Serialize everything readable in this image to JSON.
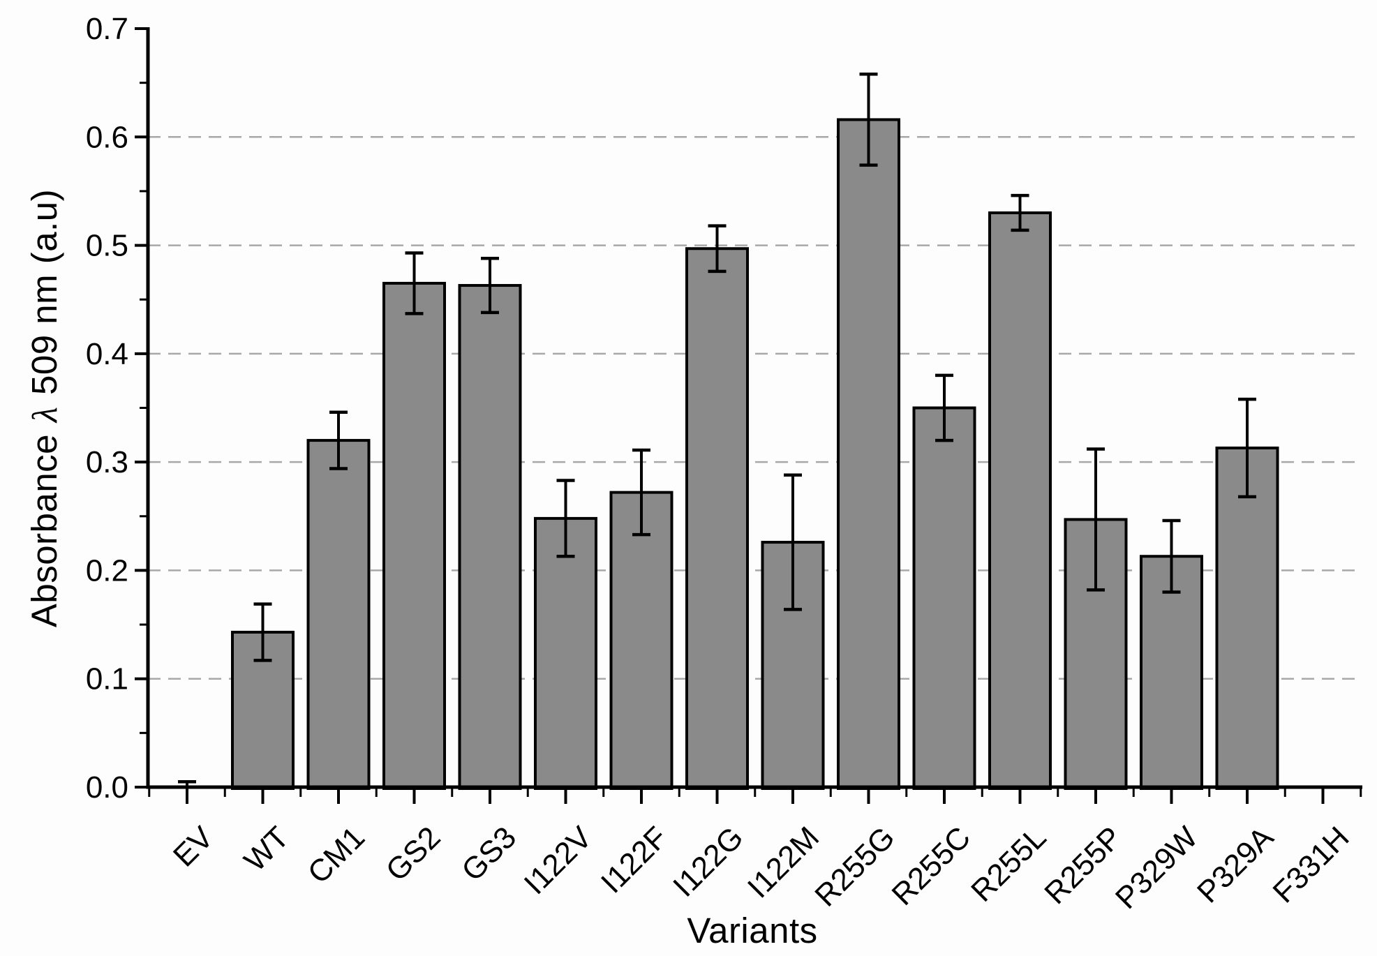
{
  "figure": {
    "background_color": "#fdfdfd"
  },
  "chart_data": {
    "type": "bar",
    "title": "",
    "xlabel": "Variants",
    "ylabel": "Absorbance λ 509 nm (a.u)",
    "ylabel_parts": {
      "prefix": "Absorbance ",
      "lambda": "λ",
      "suffix": " 509 nm (a.u)"
    },
    "ylim": [
      0.0,
      0.7
    ],
    "ytick_step": 0.1,
    "yminor_step": 0.05,
    "ytick_labels": [
      "0.0",
      "0.1",
      "0.2",
      "0.3",
      "0.4",
      "0.5",
      "0.6",
      "0.7"
    ],
    "grid": {
      "show": true,
      "axis": "y",
      "style": "dashed",
      "values": [
        0.1,
        0.2,
        0.3,
        0.4,
        0.5,
        0.6
      ]
    },
    "legend": null,
    "categories": [
      "EV",
      "WT",
      "CM1",
      "GS2",
      "GS3",
      "I122V",
      "I122F",
      "I122G",
      "I122M",
      "R255G",
      "R255C",
      "R255L",
      "R255P",
      "P329W",
      "P329A",
      "F331H"
    ],
    "values": [
      0.001,
      0.143,
      0.32,
      0.465,
      0.463,
      0.248,
      0.272,
      0.497,
      0.226,
      0.616,
      0.35,
      0.53,
      0.247,
      0.213,
      0.313,
      0.0
    ],
    "errors": [
      0.004,
      0.026,
      0.026,
      0.028,
      0.025,
      0.035,
      0.039,
      0.021,
      0.062,
      0.042,
      0.03,
      0.016,
      0.065,
      0.033,
      0.045,
      0.0
    ],
    "colors": {
      "bar_fill": "#8a8a8a",
      "bar_edge": "#000000",
      "error_bar": "#000000",
      "grid_line": "#a8a8a8",
      "axis_line": "#000000",
      "text": "#000000"
    }
  }
}
